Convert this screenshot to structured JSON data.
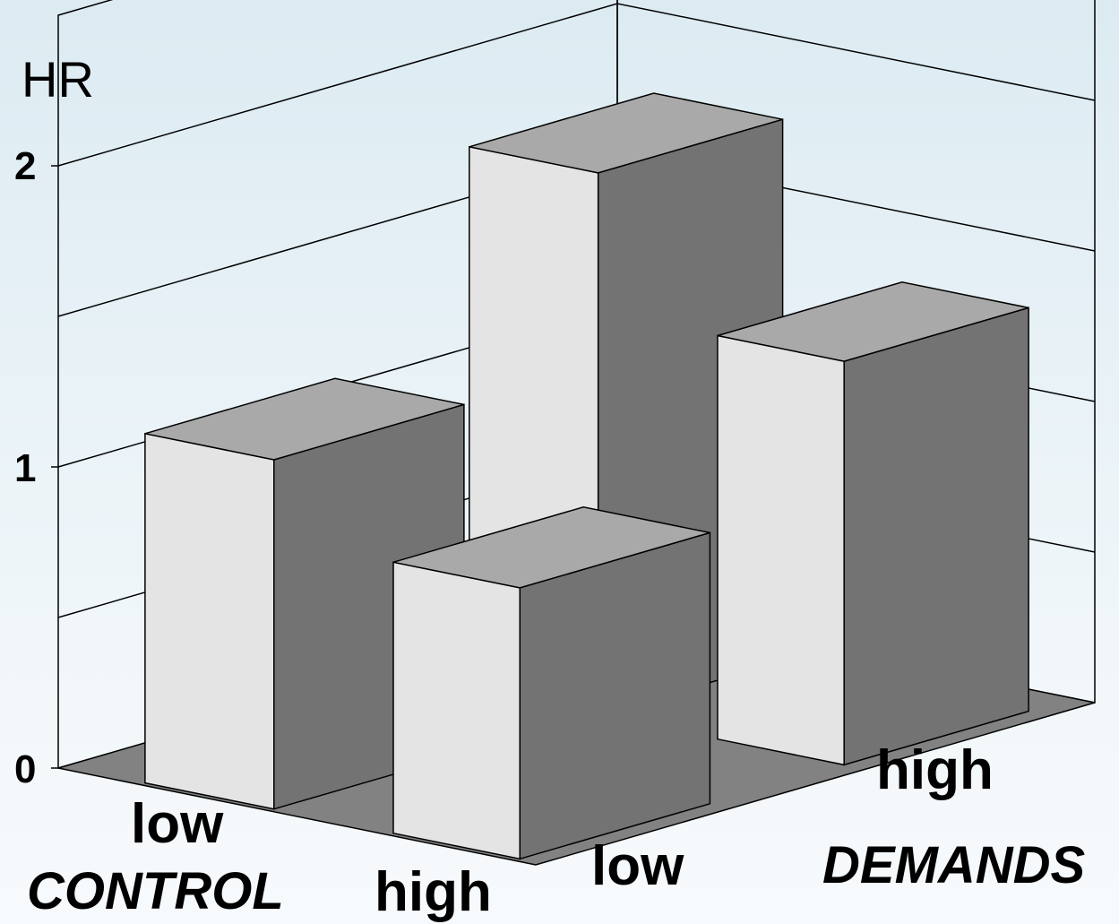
{
  "chart_data": {
    "type": "bar",
    "subtype": "3d-bar",
    "ylabel": "HR",
    "ylim": [
      0,
      2
    ],
    "yticks": [
      0,
      1,
      2
    ],
    "grid": true,
    "x_axis": {
      "name": "CONTROL",
      "categories": [
        "low",
        "high"
      ]
    },
    "z_axis": {
      "name": "DEMANDS",
      "categories": [
        "low",
        "high"
      ]
    },
    "bars": [
      {
        "control": "low",
        "demands": "low",
        "value": 1.16
      },
      {
        "control": "low",
        "demands": "high",
        "value": 1.8
      },
      {
        "control": "high",
        "demands": "low",
        "value": 0.9
      },
      {
        "control": "high",
        "demands": "high",
        "value": 1.34
      }
    ],
    "colors": {
      "front": "#e4e4e4",
      "side": "#737373",
      "top": "#a9a9a9",
      "floor": "#828282",
      "grid": "#000000"
    }
  }
}
